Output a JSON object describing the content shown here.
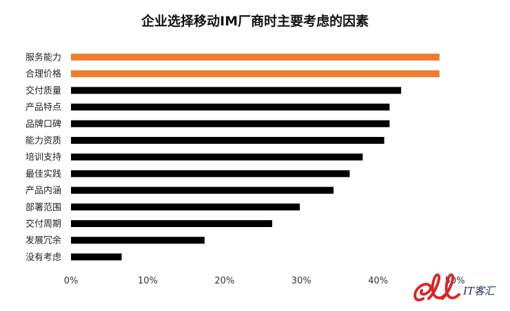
{
  "chart_data": {
    "type": "bar",
    "orientation": "horizontal",
    "title": "企业选择移动IM厂商时主要考虑的因素",
    "xlabel": "",
    "ylabel": "",
    "categories": [
      "服务能力",
      "合理价格",
      "交付质量",
      "产品特点",
      "品牌口碑",
      "能力资质",
      "培训支持",
      "最佳实践",
      "产品内涵",
      "部署范围",
      "交付周期",
      "发展冗余",
      "没有考虑"
    ],
    "values": [
      48,
      48,
      43,
      41.5,
      41.5,
      40.8,
      38,
      36.3,
      34.2,
      29.8,
      26.2,
      17.4,
      6.6
    ],
    "xlim": [
      0,
      50
    ],
    "xticks": [
      "0%",
      "10%",
      "20%",
      "30%",
      "40%",
      "50%"
    ],
    "grid": false,
    "colors": {
      "highlight": "#ED7D31",
      "default": "#000000"
    },
    "highlighted_categories": [
      "服务能力",
      "合理价格"
    ]
  },
  "watermark": {
    "text": "IT客汇",
    "logo_color": "#D7262A"
  }
}
